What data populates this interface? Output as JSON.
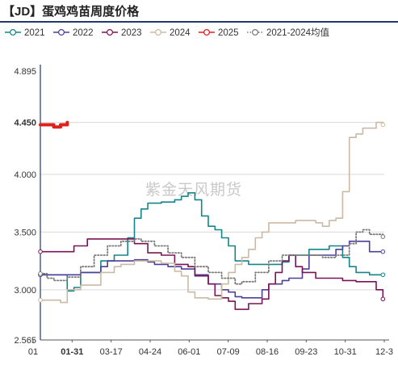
{
  "title": "【JD】蛋鸡鸡苗周度价格",
  "watermark": "紫金天风期货",
  "colors": {
    "2021": "#14868a",
    "2022": "#4e3f98",
    "2023": "#7b1457",
    "2024": "#cbb9a4",
    "2025": "#e0201b",
    "avg": "#777777"
  },
  "chart_data": {
    "type": "line",
    "ylim": [
      2.565,
      4.895
    ],
    "yticks": [
      "4.895",
      "4.450",
      "4.000",
      "3.500",
      "3.000",
      "2.565"
    ],
    "highlight_ytick": "4.450",
    "xticks": [
      "01",
      "01-31",
      "03-17",
      "04-24",
      "06-01",
      "07-09",
      "08-16",
      "09-23",
      "10-31",
      "12-3"
    ],
    "highlight_xtick": "01-31",
    "xlabel": "",
    "ylabel": "",
    "grid": true,
    "legend_position": "top",
    "series": [
      {
        "name": "2021",
        "color_key": "2021",
        "style": "solid",
        "marker": "hollow-circle",
        "points": [
          [
            1,
            3.13
          ],
          [
            3,
            3.13
          ],
          [
            5,
            2.99
          ],
          [
            6,
            3.02
          ],
          [
            7,
            3.15
          ],
          [
            10,
            3.25
          ],
          [
            12,
            3.3
          ],
          [
            14,
            3.45
          ],
          [
            15,
            3.62
          ],
          [
            16,
            3.7
          ],
          [
            17,
            3.75
          ],
          [
            19,
            3.76
          ],
          [
            21,
            3.78
          ],
          [
            22,
            3.81
          ],
          [
            23,
            3.84
          ],
          [
            24,
            3.78
          ],
          [
            25,
            3.64
          ],
          [
            26,
            3.55
          ],
          [
            27,
            3.52
          ],
          [
            28,
            3.45
          ],
          [
            29,
            3.38
          ],
          [
            30,
            3.25
          ],
          [
            32,
            3.22
          ],
          [
            35,
            3.22
          ],
          [
            37,
            3.24
          ],
          [
            38,
            3.3
          ],
          [
            41,
            3.35
          ],
          [
            43,
            3.35
          ],
          [
            44,
            3.38
          ],
          [
            46,
            3.28
          ],
          [
            47,
            3.2
          ],
          [
            48,
            3.15
          ],
          [
            50,
            3.13
          ],
          [
            52,
            3.13
          ]
        ]
      },
      {
        "name": "2022",
        "color_key": "2022",
        "style": "solid",
        "marker": "hollow-circle",
        "points": [
          [
            1,
            3.13
          ],
          [
            5,
            3.13
          ],
          [
            7,
            3.15
          ],
          [
            10,
            3.2
          ],
          [
            11,
            3.25
          ],
          [
            13,
            3.25
          ],
          [
            15,
            3.26
          ],
          [
            17,
            3.24
          ],
          [
            18,
            3.22
          ],
          [
            20,
            3.2
          ],
          [
            22,
            3.18
          ],
          [
            24,
            3.13
          ],
          [
            26,
            3.05
          ],
          [
            28,
            3.0
          ],
          [
            29,
            2.98
          ],
          [
            30,
            2.94
          ],
          [
            31,
            2.93
          ],
          [
            33,
            2.93
          ],
          [
            34,
            3.0
          ],
          [
            35,
            3.05
          ],
          [
            37,
            3.08
          ],
          [
            38,
            3.1
          ],
          [
            39,
            3.1
          ],
          [
            40,
            3.18
          ],
          [
            41,
            3.3
          ],
          [
            43,
            3.3
          ],
          [
            45,
            3.35
          ],
          [
            46,
            3.38
          ],
          [
            47,
            3.42
          ],
          [
            48,
            3.42
          ],
          [
            49,
            3.42
          ],
          [
            50,
            3.33
          ],
          [
            52,
            3.33
          ]
        ]
      },
      {
        "name": "2023",
        "color_key": "2023",
        "style": "solid",
        "marker": "hollow-circle",
        "points": [
          [
            1,
            3.33
          ],
          [
            5,
            3.33
          ],
          [
            6,
            3.38
          ],
          [
            7,
            3.38
          ],
          [
            8,
            3.44
          ],
          [
            13,
            3.44
          ],
          [
            15,
            3.4
          ],
          [
            17,
            3.32
          ],
          [
            19,
            3.3
          ],
          [
            21,
            3.22
          ],
          [
            23,
            3.2
          ],
          [
            24,
            3.12
          ],
          [
            26,
            3.05
          ],
          [
            27,
            2.95
          ],
          [
            28,
            2.93
          ],
          [
            29,
            2.9
          ],
          [
            30,
            2.83
          ],
          [
            31,
            2.83
          ],
          [
            32,
            2.88
          ],
          [
            34,
            2.92
          ],
          [
            35,
            3.05
          ],
          [
            36,
            3.15
          ],
          [
            37,
            3.25
          ],
          [
            38,
            3.3
          ],
          [
            39,
            3.2
          ],
          [
            40,
            3.15
          ],
          [
            42,
            3.1
          ],
          [
            44,
            3.1
          ],
          [
            46,
            3.08
          ],
          [
            48,
            3.07
          ],
          [
            50,
            3.07
          ],
          [
            51,
            3.0
          ],
          [
            52,
            2.92
          ]
        ]
      },
      {
        "name": "2024",
        "color_key": "2024",
        "style": "solid",
        "marker": "hollow-circle",
        "points": [
          [
            1,
            2.91
          ],
          [
            3,
            2.91
          ],
          [
            4,
            2.89
          ],
          [
            5,
            3.0
          ],
          [
            7,
            3.04
          ],
          [
            8,
            3.04
          ],
          [
            10,
            3.15
          ],
          [
            12,
            3.2
          ],
          [
            13,
            3.22
          ],
          [
            15,
            3.25
          ],
          [
            17,
            3.25
          ],
          [
            19,
            3.23
          ],
          [
            21,
            3.16
          ],
          [
            22,
            3.12
          ],
          [
            23,
            2.98
          ],
          [
            24,
            2.93
          ],
          [
            26,
            2.92
          ],
          [
            28,
            3.05
          ],
          [
            29,
            3.15
          ],
          [
            30,
            3.22
          ],
          [
            31,
            3.28
          ],
          [
            32,
            3.35
          ],
          [
            33,
            3.45
          ],
          [
            34,
            3.5
          ],
          [
            35,
            3.58
          ],
          [
            37,
            3.58
          ],
          [
            39,
            3.6
          ],
          [
            41,
            3.6
          ],
          [
            42,
            3.58
          ],
          [
            43,
            3.55
          ],
          [
            44,
            3.6
          ],
          [
            45,
            3.62
          ],
          [
            46,
            3.85
          ],
          [
            47,
            4.32
          ],
          [
            48,
            4.35
          ],
          [
            49,
            4.4
          ],
          [
            50,
            4.4
          ],
          [
            51,
            4.45
          ],
          [
            52,
            4.43
          ]
        ]
      },
      {
        "name": "2025",
        "color_key": "2025",
        "style": "solid",
        "marker": "hollow-circle",
        "points": [
          [
            1,
            4.43
          ],
          [
            2,
            4.43
          ],
          [
            3,
            4.41
          ],
          [
            4,
            4.43
          ],
          [
            5,
            4.45
          ]
        ]
      },
      {
        "name": "2021-2024均值",
        "color_key": "avg",
        "style": "dotted",
        "marker": "hollow-circle",
        "points": [
          [
            1,
            3.14
          ],
          [
            2,
            3.1
          ],
          [
            3,
            3.08
          ],
          [
            5,
            3.11
          ],
          [
            7,
            3.2
          ],
          [
            9,
            3.3
          ],
          [
            11,
            3.38
          ],
          [
            13,
            3.42
          ],
          [
            15,
            3.44
          ],
          [
            16,
            3.42
          ],
          [
            18,
            3.38
          ],
          [
            20,
            3.32
          ],
          [
            22,
            3.28
          ],
          [
            24,
            3.2
          ],
          [
            26,
            3.15
          ],
          [
            28,
            3.1
          ],
          [
            30,
            3.05
          ],
          [
            31,
            3.07
          ],
          [
            33,
            3.15
          ],
          [
            35,
            3.25
          ],
          [
            37,
            3.3
          ],
          [
            39,
            3.3
          ],
          [
            41,
            3.3
          ],
          [
            43,
            3.28
          ],
          [
            45,
            3.3
          ],
          [
            47,
            3.4
          ],
          [
            48,
            3.5
          ],
          [
            49,
            3.52
          ],
          [
            50,
            3.48
          ],
          [
            52,
            3.46
          ]
        ]
      }
    ]
  }
}
